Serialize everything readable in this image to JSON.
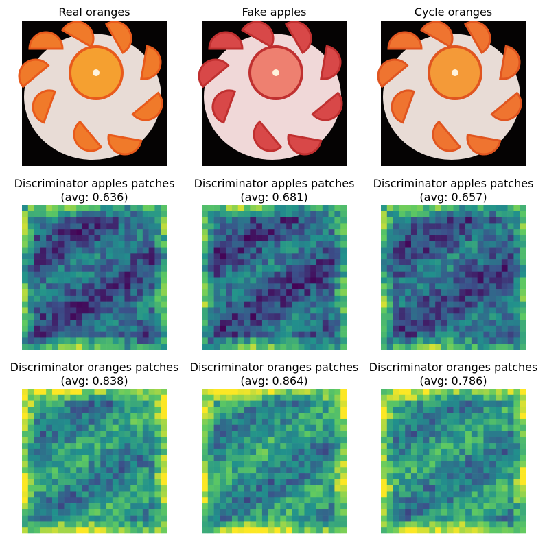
{
  "panels": [
    {
      "title": "Real oranges"
    },
    {
      "title": "Fake apples"
    },
    {
      "title": "Cycle oranges"
    },
    {
      "title": "Discriminator apples patches",
      "subtitle": "(avg: 0.636)"
    },
    {
      "title": "Discriminator apples patches",
      "subtitle": "(avg: 0.681)"
    },
    {
      "title": "Discriminator apples patches",
      "subtitle": "(avg: 0.657)"
    },
    {
      "title": "Discriminator oranges patches",
      "subtitle": "(avg: 0.838)"
    },
    {
      "title": "Discriminator oranges patches",
      "subtitle": "(avg: 0.864)"
    },
    {
      "title": "Discriminator oranges patches",
      "subtitle": "(avg: 0.786)"
    }
  ]
}
